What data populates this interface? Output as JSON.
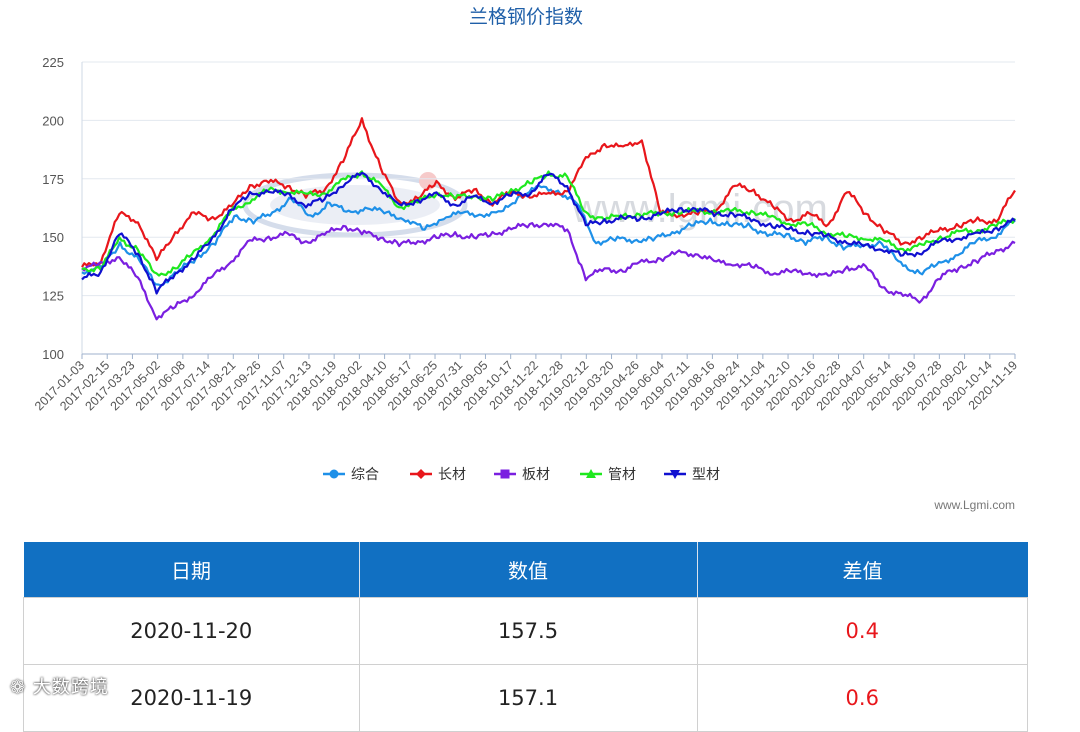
{
  "chart_data": {
    "type": "line",
    "title": "兰格钢价指数",
    "ylim": [
      100,
      225
    ],
    "y_ticks": [
      100,
      125,
      150,
      175,
      200,
      225
    ],
    "x_ticks": [
      "2017-01-03",
      "2017-02-15",
      "2017-03-23",
      "2017-05-02",
      "2017-06-08",
      "2017-07-14",
      "2017-08-21",
      "2017-09-26",
      "2017-11-07",
      "2017-12-13",
      "2018-01-19",
      "2018-03-02",
      "2018-04-10",
      "2018-05-17",
      "2018-06-25",
      "2018-07-31",
      "2018-09-05",
      "2018-10-17",
      "2018-11-22",
      "2018-12-28",
      "2019-02-12",
      "2019-03-20",
      "2019-04-26",
      "2019-06-04",
      "2019-07-11",
      "2019-08-16",
      "2019-09-24",
      "2019-11-04",
      "2019-12-10",
      "2020-01-16",
      "2020-02-28",
      "2020-04-07",
      "2020-05-14",
      "2020-06-19",
      "2020-07-28",
      "2020-09-02",
      "2020-10-14",
      "2020-11-19"
    ],
    "grid": true,
    "legend_position": "bottom",
    "series": [
      {
        "name": "综合",
        "color": "#1e90e8",
        "marker": "circle",
        "values": [
          135,
          137,
          147,
          140,
          129,
          135,
          141,
          148,
          159,
          157,
          160,
          167,
          158,
          165,
          160,
          163,
          160,
          158,
          153,
          159,
          160,
          160,
          160,
          168,
          171,
          170,
          164,
          148,
          149,
          149,
          149,
          152,
          155,
          157,
          155,
          155,
          151,
          151,
          148,
          150,
          146,
          146,
          148,
          138,
          135,
          138,
          143,
          148,
          151,
          157.1
        ]
      },
      {
        "name": "长材",
        "color": "#e8161b",
        "marker": "diamond",
        "values": [
          137,
          140,
          160,
          157,
          140,
          152,
          160,
          158,
          163,
          172,
          174,
          172,
          168,
          170,
          183,
          200,
          180,
          164,
          167,
          173,
          167,
          170,
          165,
          169,
          168,
          168,
          170,
          183,
          190,
          188,
          192,
          160,
          160,
          160,
          162,
          172,
          170,
          163,
          157,
          160,
          155,
          170,
          160,
          153,
          147,
          150,
          153,
          155,
          157,
          157,
          170
        ]
      },
      {
        "name": "板材",
        "color": "#7a1fe0",
        "marker": "square",
        "values": [
          137,
          138,
          142,
          132,
          116,
          120,
          126,
          133,
          140,
          148,
          150,
          151,
          148,
          151,
          155,
          152,
          150,
          147,
          148,
          150,
          151,
          150,
          151,
          154,
          155,
          156,
          153,
          133,
          136,
          136,
          139,
          141,
          143,
          143,
          139,
          139,
          137,
          135,
          135,
          135,
          133,
          137,
          137,
          128,
          125,
          123,
          133,
          137,
          140,
          144,
          147.5
        ]
      },
      {
        "name": "管材",
        "color": "#1ee81e",
        "marker": "triangle",
        "values": [
          136,
          137,
          149,
          145,
          133,
          137,
          143,
          151,
          161,
          166,
          170,
          170,
          168,
          169,
          174,
          178,
          172,
          163,
          165,
          169,
          167,
          168,
          166,
          170,
          173,
          177,
          176,
          160,
          158,
          159,
          160,
          160,
          161,
          161,
          161,
          161,
          161,
          158,
          156,
          155,
          152,
          150,
          150,
          148,
          145,
          146,
          150,
          152,
          153,
          155,
          158
        ]
      },
      {
        "name": "型材",
        "color": "#1010d0",
        "marker": "triangle-down",
        "values": [
          132,
          135,
          152,
          143,
          127,
          134,
          141,
          149,
          162,
          168,
          170,
          168,
          164,
          166,
          173,
          177,
          171,
          163,
          166,
          168,
          164,
          167,
          165,
          168,
          169,
          177,
          172,
          155,
          157,
          158,
          158,
          160,
          162,
          162,
          160,
          160,
          157,
          155,
          153,
          152,
          150,
          148,
          146,
          145,
          142,
          144,
          148,
          150,
          151,
          154,
          157
        ]
      }
    ]
  },
  "credit": "www.Lgmi.com",
  "watermark": "www.lgmi.com",
  "table": {
    "headers": [
      "日期",
      "数值",
      "差值"
    ],
    "rows": [
      {
        "date": "2020-11-20",
        "value": "157.5",
        "diff": "0.4"
      },
      {
        "date": "2020-11-19",
        "value": "157.1",
        "diff": "0.6"
      }
    ]
  },
  "bottom_watermark": "大数跨境"
}
